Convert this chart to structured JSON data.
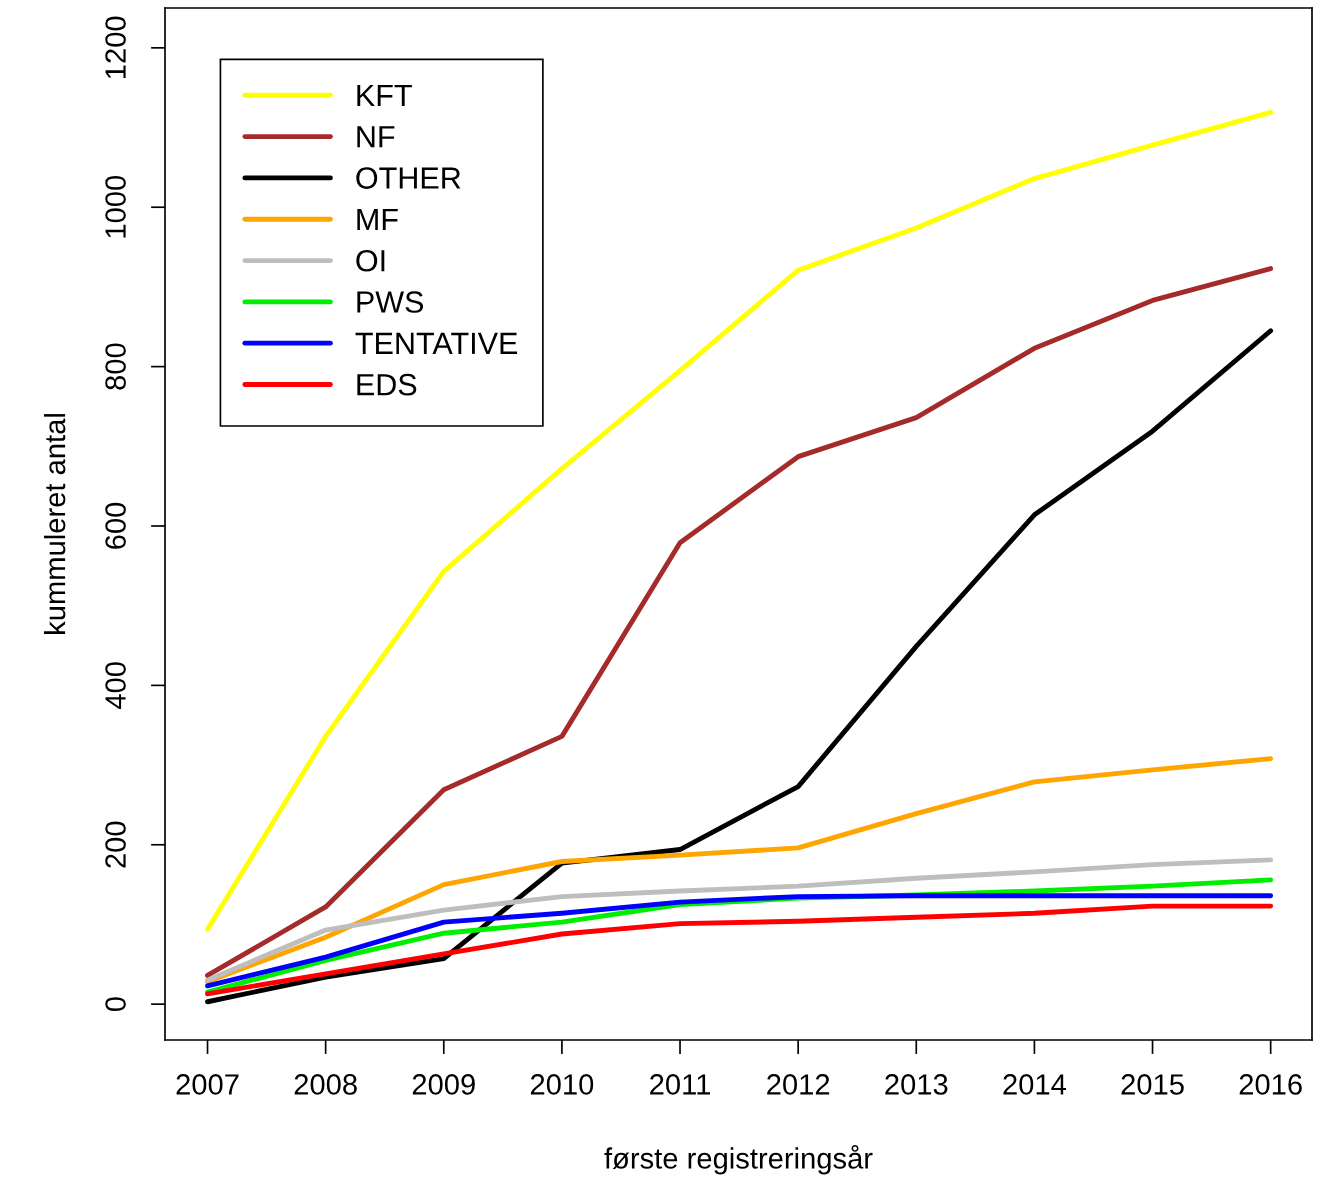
{
  "chart_data": {
    "type": "line",
    "xlabel": "første registreringsår",
    "ylabel": "kummuleret antal",
    "x": [
      2007,
      2008,
      2009,
      2010,
      2011,
      2012,
      2013,
      2014,
      2015,
      2016
    ],
    "xlim": [
      2006.64,
      2016.35
    ],
    "xticks": [
      2007,
      2008,
      2009,
      2010,
      2011,
      2012,
      2013,
      2014,
      2015,
      2016
    ],
    "ylim": [
      -45,
      1250
    ],
    "yticks": [
      0,
      200,
      400,
      600,
      800,
      1000,
      1200
    ],
    "grid": false,
    "legend": "top left",
    "marker": "none",
    "line_style": "solid",
    "series": [
      {
        "name": "KFT",
        "color": "#ffff00",
        "values": [
          94,
          336,
          543,
          672,
          795,
          921,
          974,
          1036,
          1078,
          1119
        ]
      },
      {
        "name": "NF",
        "color": "#a52a2a",
        "values": [
          36,
          122,
          269,
          336,
          579,
          687,
          736,
          823,
          883,
          923
        ]
      },
      {
        "name": "OTHER",
        "color": "#000000",
        "values": [
          3,
          34,
          57,
          177,
          194,
          273,
          449,
          614,
          719,
          845
        ]
      },
      {
        "name": "MF",
        "color": "#ffa500",
        "values": [
          28,
          84,
          150,
          179,
          187,
          196,
          239,
          279,
          294,
          308
        ]
      },
      {
        "name": "OI",
        "color": "#bebebe",
        "values": [
          30,
          93,
          118,
          135,
          142,
          148,
          158,
          166,
          175,
          181
        ]
      },
      {
        "name": "PWS",
        "color": "#00ee00",
        "values": [
          15,
          55,
          89,
          103,
          125,
          133,
          137,
          142,
          148,
          156
        ]
      },
      {
        "name": "TENTATIVE",
        "color": "#0000ff",
        "values": [
          23,
          59,
          103,
          114,
          128,
          135,
          136,
          136,
          136,
          136
        ]
      },
      {
        "name": "EDS",
        "color": "#ff0000",
        "values": [
          13,
          38,
          63,
          88,
          101,
          104,
          109,
          114,
          123,
          123
        ]
      }
    ]
  }
}
